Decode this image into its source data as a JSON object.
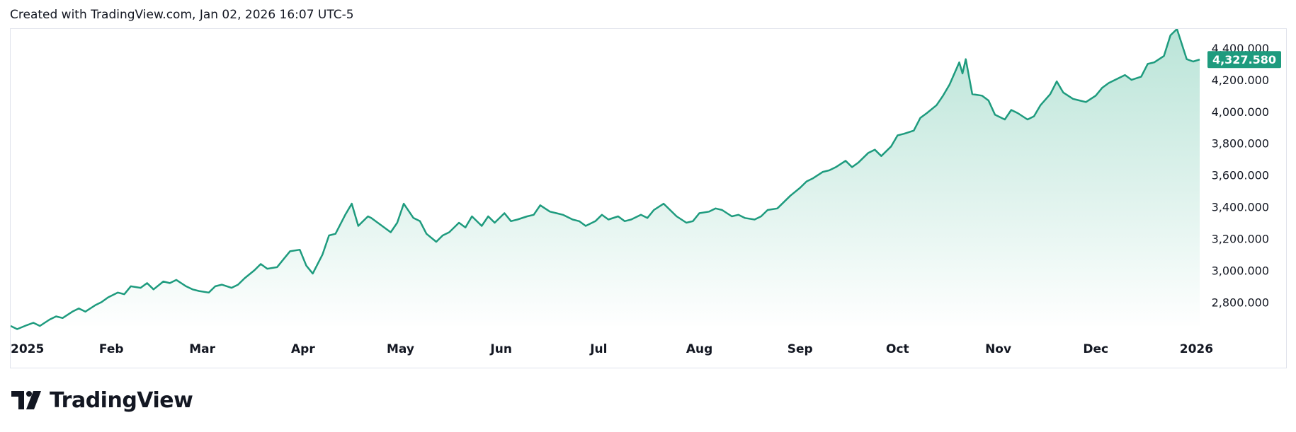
{
  "header": {
    "text": "Created with TradingView.com, Jan 02, 2026 16:07 UTC-5"
  },
  "brand": {
    "name": "TradingView",
    "logo_icon": "tradingview-logo-icon"
  },
  "colors": {
    "line": "#1e9b7e",
    "area_top": "#b7e3d6",
    "area_bottom": "#ffffff",
    "label_bg": "#1e9b7e",
    "grid": "none"
  },
  "chart_data": {
    "type": "area",
    "title": "",
    "xlabel": "",
    "ylabel": "",
    "grid": false,
    "legend": "none",
    "last_value_label": "4,327.580",
    "x_ticks": [
      "2025",
      "Feb",
      "Mar",
      "Apr",
      "May",
      "Jun",
      "Jul",
      "Aug",
      "Sep",
      "Oct",
      "Nov",
      "Dec",
      "2026"
    ],
    "x_ticks_bold": [
      "2025",
      "2026"
    ],
    "y_ticks": [
      "2,800.000",
      "3,000.000",
      "3,200.000",
      "3,400.000",
      "3,600.000",
      "3,800.000",
      "4,000.000",
      "4,200.000",
      "4,400.000"
    ],
    "ylim": [
      2650,
      4520
    ],
    "xlim": [
      "2025-01-01",
      "2026-01-02"
    ],
    "series": [
      {
        "x": [
          "2025-01-01",
          "2025-01-03",
          "2025-01-06",
          "2025-01-08",
          "2025-01-10",
          "2025-01-13",
          "2025-01-15",
          "2025-01-17",
          "2025-01-20",
          "2025-01-22",
          "2025-01-24",
          "2025-01-27",
          "2025-01-29",
          "2025-01-31",
          "2025-02-03",
          "2025-02-05",
          "2025-02-07",
          "2025-02-10",
          "2025-02-12",
          "2025-02-14",
          "2025-02-17",
          "2025-02-19",
          "2025-02-21",
          "2025-02-24",
          "2025-02-26",
          "2025-02-28",
          "2025-03-03",
          "2025-03-05",
          "2025-03-07",
          "2025-03-10",
          "2025-03-12",
          "2025-03-14",
          "2025-03-17",
          "2025-03-19",
          "2025-03-21",
          "2025-03-24",
          "2025-03-26",
          "2025-03-28",
          "2025-03-31",
          "2025-04-02",
          "2025-04-04",
          "2025-04-07",
          "2025-04-09",
          "2025-04-11",
          "2025-04-14",
          "2025-04-16",
          "2025-04-18",
          "2025-04-21",
          "2025-04-22",
          "2025-04-24",
          "2025-04-28",
          "2025-04-30",
          "2025-05-02",
          "2025-05-05",
          "2025-05-07",
          "2025-05-09",
          "2025-05-12",
          "2025-05-14",
          "2025-05-16",
          "2025-05-19",
          "2025-05-21",
          "2025-05-23",
          "2025-05-26",
          "2025-05-28",
          "2025-05-30",
          "2025-06-02",
          "2025-06-04",
          "2025-06-06",
          "2025-06-09",
          "2025-06-11",
          "2025-06-13",
          "2025-06-16",
          "2025-06-18",
          "2025-06-20",
          "2025-06-23",
          "2025-06-25",
          "2025-06-27",
          "2025-06-30",
          "2025-07-02",
          "2025-07-04",
          "2025-07-07",
          "2025-07-09",
          "2025-07-11",
          "2025-07-14",
          "2025-07-16",
          "2025-07-18",
          "2025-07-21",
          "2025-07-23",
          "2025-07-25",
          "2025-07-28",
          "2025-07-30",
          "2025-08-01",
          "2025-08-04",
          "2025-08-06",
          "2025-08-08",
          "2025-08-11",
          "2025-08-13",
          "2025-08-15",
          "2025-08-18",
          "2025-08-20",
          "2025-08-22",
          "2025-08-25",
          "2025-08-27",
          "2025-08-29",
          "2025-09-01",
          "2025-09-03",
          "2025-09-05",
          "2025-09-08",
          "2025-09-10",
          "2025-09-12",
          "2025-09-15",
          "2025-09-17",
          "2025-09-19",
          "2025-09-22",
          "2025-09-24",
          "2025-09-26",
          "2025-09-29",
          "2025-10-01",
          "2025-10-03",
          "2025-10-06",
          "2025-10-08",
          "2025-10-10",
          "2025-10-13",
          "2025-10-15",
          "2025-10-17",
          "2025-10-20",
          "2025-10-21",
          "2025-10-22",
          "2025-10-24",
          "2025-10-27",
          "2025-10-29",
          "2025-10-31",
          "2025-11-03",
          "2025-11-05",
          "2025-11-07",
          "2025-11-10",
          "2025-11-12",
          "2025-11-14",
          "2025-11-17",
          "2025-11-19",
          "2025-11-21",
          "2025-11-24",
          "2025-11-26",
          "2025-11-28",
          "2025-12-01",
          "2025-12-03",
          "2025-12-05",
          "2025-12-08",
          "2025-12-10",
          "2025-12-12",
          "2025-12-15",
          "2025-12-17",
          "2025-12-19",
          "2025-12-22",
          "2025-12-24",
          "2025-12-26",
          "2025-12-29",
          "2025-12-31",
          "2026-01-02"
        ],
        "values": [
          2650,
          2630,
          2655,
          2670,
          2650,
          2690,
          2710,
          2700,
          2740,
          2760,
          2740,
          2780,
          2800,
          2830,
          2860,
          2850,
          2900,
          2890,
          2920,
          2880,
          2930,
          2920,
          2940,
          2900,
          2880,
          2870,
          2860,
          2900,
          2910,
          2890,
          2910,
          2950,
          3000,
          3040,
          3010,
          3020,
          3070,
          3120,
          3130,
          3030,
          2980,
          3100,
          3220,
          3230,
          3350,
          3420,
          3280,
          3340,
          3330,
          3300,
          3240,
          3300,
          3420,
          3330,
          3310,
          3230,
          3180,
          3220,
          3240,
          3300,
          3270,
          3340,
          3280,
          3340,
          3300,
          3360,
          3310,
          3320,
          3340,
          3350,
          3410,
          3370,
          3360,
          3350,
          3320,
          3310,
          3280,
          3310,
          3350,
          3320,
          3340,
          3310,
          3320,
          3350,
          3330,
          3380,
          3420,
          3380,
          3340,
          3300,
          3310,
          3360,
          3370,
          3390,
          3380,
          3340,
          3350,
          3330,
          3320,
          3340,
          3380,
          3390,
          3430,
          3470,
          3520,
          3560,
          3580,
          3620,
          3630,
          3650,
          3690,
          3650,
          3680,
          3740,
          3760,
          3720,
          3780,
          3850,
          3860,
          3880,
          3960,
          3990,
          4040,
          4100,
          4170,
          4310,
          4240,
          4330,
          4110,
          4100,
          4070,
          3980,
          3950,
          4010,
          3990,
          3950,
          3970,
          4040,
          4110,
          4190,
          4120,
          4080,
          4070,
          4060,
          4100,
          4150,
          4180,
          4210,
          4230,
          4200,
          4220,
          4300,
          4310,
          4350,
          4480,
          4520,
          4330,
          4315,
          4327.58
        ],
        "last": 4327.58
      }
    ]
  }
}
